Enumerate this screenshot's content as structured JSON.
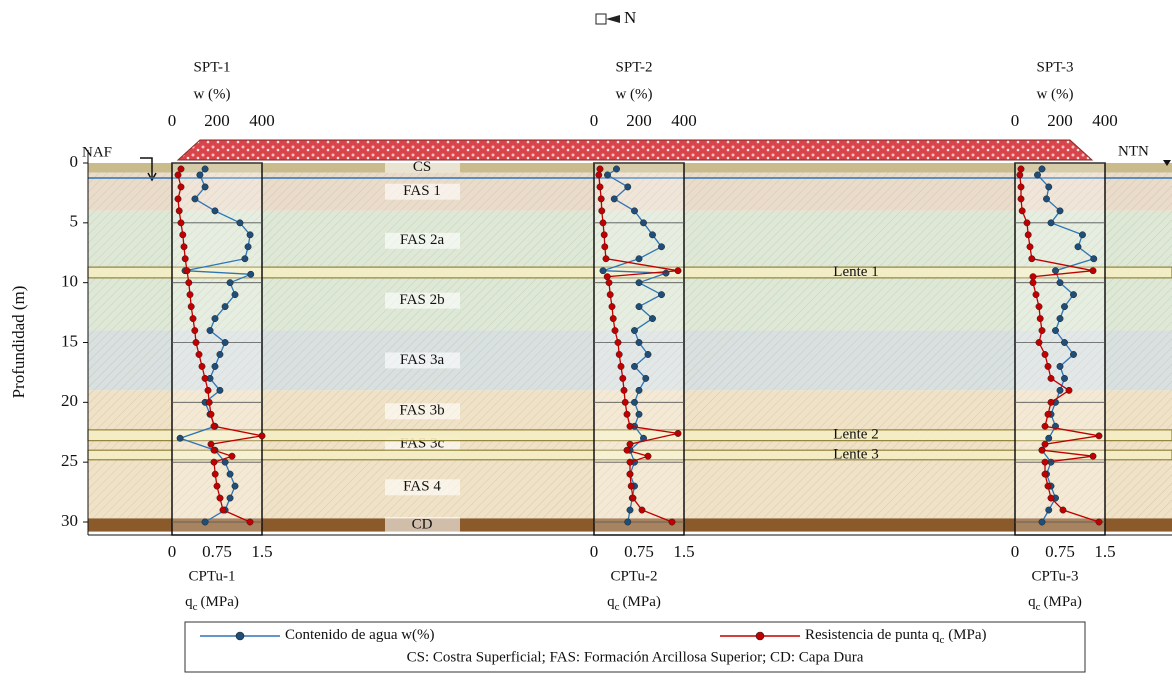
{
  "chart_data": {
    "type": "line",
    "north": "N",
    "ylabel": "Profundidad (m)",
    "ylim": [
      0,
      30
    ],
    "yticks": [
      0,
      5,
      10,
      15,
      20,
      25,
      30
    ],
    "left_label": "NAF",
    "right_label": "NTN",
    "series": [
      {
        "name": "Contenido de agua w(%)",
        "color": "#2e75b6",
        "marker": "#1f4e79"
      },
      {
        "name": "Resistencia de punta q",
        "name_sub": "c",
        "name_suffix": " (MPa)",
        "color": "#c00000",
        "marker": "#c00000"
      }
    ],
    "legend_note": "CS: Costra Superficial; FAS: Formación Arcillosa Superior; CD: Capa Dura",
    "strata": [
      {
        "label": "CS",
        "top": 0,
        "bottom": 0.8,
        "color": "#c9bb8c"
      },
      {
        "label": "FAS 1",
        "top": 0.8,
        "bottom": 4,
        "color": "#eadccb"
      },
      {
        "label": "FAS 2a",
        "top": 4,
        "bottom": 9,
        "color": "#dde8d6"
      },
      {
        "label": "FAS 2b",
        "top": 9,
        "bottom": 14,
        "color": "#dde8d6"
      },
      {
        "label": "FAS 3a",
        "top": 14,
        "bottom": 19,
        "color": "#d8e0e0"
      },
      {
        "label": "FAS 3b",
        "top": 19,
        "bottom": 22.5,
        "color": "#efe2c6"
      },
      {
        "label": "FAS 3c",
        "top": 22.5,
        "bottom": 24.5,
        "color": "#efe2c6"
      },
      {
        "label": "FAS 4",
        "top": 24.5,
        "bottom": 29.7,
        "color": "#efe2c6"
      },
      {
        "label": "CD",
        "top": 29.7,
        "bottom": 30.8,
        "color": "#8b5a2b"
      }
    ],
    "lenses": [
      {
        "label": "Lente 1",
        "top": 8.7,
        "bottom": 9.6
      },
      {
        "label": "Lente 2",
        "top": 22.3,
        "bottom": 23.2
      },
      {
        "label": "Lente 3",
        "top": 24.0,
        "bottom": 24.8
      }
    ],
    "panels": [
      {
        "spt": "SPT-1",
        "w_label": "w (%)",
        "wlim": [
          0,
          400
        ],
        "wticks": [
          0,
          200,
          400
        ],
        "cptu": "CPTu-1",
        "qc_label": "q",
        "qc_sub": "c",
        "qc_unit": "(MPa)",
        "qclim": [
          0,
          1.5
        ],
        "qcticks": [
          0,
          0.75,
          1.5
        ],
        "w": {
          "depth": [
            0.5,
            1,
            2,
            3,
            4,
            5,
            6,
            7,
            8,
            9,
            9.3,
            10,
            11,
            12,
            13,
            14,
            15,
            16,
            17,
            18,
            19,
            20,
            21,
            22,
            23,
            24,
            25,
            26,
            27,
            28,
            29,
            30
          ],
          "values": [
            147,
            124,
            147,
            102,
            191,
            302,
            347,
            338,
            324,
            58,
            350,
            258,
            280,
            236,
            191,
            169,
            236,
            213,
            191,
            169,
            213,
            147,
            169,
            191,
            36,
            191,
            236,
            258,
            280,
            258,
            236,
            147
          ]
        },
        "qc": {
          "depth": [
            0.5,
            1,
            2,
            3,
            4,
            5,
            6,
            7,
            8,
            9,
            10,
            11,
            12,
            13,
            14,
            15,
            16,
            17,
            18,
            19,
            20,
            21,
            22,
            22.8,
            23.5,
            24,
            24.5,
            25,
            26,
            27,
            28,
            29,
            30
          ],
          "values": [
            0.15,
            0.1,
            0.15,
            0.1,
            0.12,
            0.15,
            0.18,
            0.2,
            0.22,
            0.25,
            0.28,
            0.3,
            0.32,
            0.35,
            0.38,
            0.4,
            0.45,
            0.5,
            0.55,
            0.6,
            0.62,
            0.65,
            0.7,
            1.5,
            0.65,
            0.7,
            1.0,
            0.7,
            0.72,
            0.75,
            0.8,
            0.85,
            1.3
          ]
        }
      },
      {
        "spt": "SPT-2",
        "w_label": "w (%)",
        "wlim": [
          0,
          400
        ],
        "wticks": [
          0,
          200,
          400
        ],
        "cptu": "CPTu-2",
        "qc_label": "q",
        "qc_sub": "c",
        "qc_unit": "(MPa)",
        "qclim": [
          0,
          1.5
        ],
        "qcticks": [
          0,
          0.75,
          1.5
        ],
        "w": {
          "depth": [
            0.5,
            1,
            2,
            3,
            4,
            5,
            6,
            7,
            8,
            9,
            9.2,
            10,
            11,
            12,
            13,
            14,
            15,
            16,
            17,
            18,
            19,
            20,
            21,
            22,
            23,
            24,
            25,
            26,
            27,
            28,
            29,
            30
          ],
          "values": [
            100,
            60,
            150,
            90,
            180,
            220,
            260,
            300,
            200,
            40,
            320,
            200,
            300,
            200,
            260,
            180,
            200,
            240,
            180,
            230,
            200,
            180,
            200,
            180,
            220,
            160,
            180,
            160,
            180,
            170,
            160,
            150
          ]
        },
        "qc": {
          "depth": [
            0.5,
            1,
            2,
            3,
            4,
            5,
            6,
            7,
            8,
            9,
            9.5,
            10,
            11,
            12,
            13,
            14,
            15,
            16,
            17,
            18,
            19,
            20,
            21,
            22,
            22.6,
            23.5,
            24,
            24.5,
            25,
            26,
            27,
            28,
            29,
            30
          ],
          "values": [
            0.1,
            0.08,
            0.1,
            0.12,
            0.13,
            0.15,
            0.17,
            0.18,
            0.2,
            1.4,
            0.22,
            0.25,
            0.27,
            0.3,
            0.32,
            0.35,
            0.4,
            0.42,
            0.45,
            0.48,
            0.5,
            0.52,
            0.55,
            0.6,
            1.4,
            0.6,
            0.55,
            0.9,
            0.6,
            0.6,
            0.62,
            0.65,
            0.8,
            1.3
          ]
        }
      },
      {
        "spt": "SPT-3",
        "w_label": "w (%)",
        "wlim": [
          0,
          400
        ],
        "wticks": [
          0,
          200,
          400
        ],
        "cptu": "CPTu-3",
        "qc_label": "q",
        "qc_sub": "c",
        "qc_unit": "(MPa)",
        "qclim": [
          0,
          1.5
        ],
        "qcticks": [
          0,
          0.75,
          1.5
        ],
        "w": {
          "depth": [
            0.5,
            1,
            2,
            3,
            4,
            5,
            6,
            7,
            8,
            9,
            10,
            11,
            12,
            13,
            14,
            15,
            16,
            17,
            18,
            19,
            20,
            21,
            22,
            23,
            24,
            25,
            26,
            27,
            28,
            29,
            30
          ],
          "values": [
            120,
            100,
            150,
            140,
            200,
            160,
            300,
            280,
            350,
            180,
            200,
            260,
            220,
            200,
            180,
            220,
            260,
            200,
            220,
            200,
            180,
            160,
            180,
            150,
            120,
            160,
            140,
            160,
            180,
            150,
            120
          ]
        },
        "qc": {
          "depth": [
            0.5,
            1,
            2,
            3,
            4,
            5,
            6,
            7,
            8,
            9,
            9.5,
            10,
            11,
            12,
            13,
            14,
            15,
            16,
            17,
            18,
            19,
            20,
            21,
            22,
            22.8,
            23.5,
            24,
            24.5,
            25,
            26,
            27,
            28,
            29,
            30
          ],
          "values": [
            0.1,
            0.08,
            0.1,
            0.1,
            0.12,
            0.2,
            0.22,
            0.25,
            0.28,
            1.3,
            0.3,
            0.3,
            0.35,
            0.4,
            0.42,
            0.45,
            0.4,
            0.5,
            0.55,
            0.6,
            0.9,
            0.6,
            0.55,
            0.5,
            1.4,
            0.5,
            0.45,
            1.3,
            0.5,
            0.5,
            0.55,
            0.6,
            0.8,
            1.4
          ]
        }
      }
    ]
  }
}
